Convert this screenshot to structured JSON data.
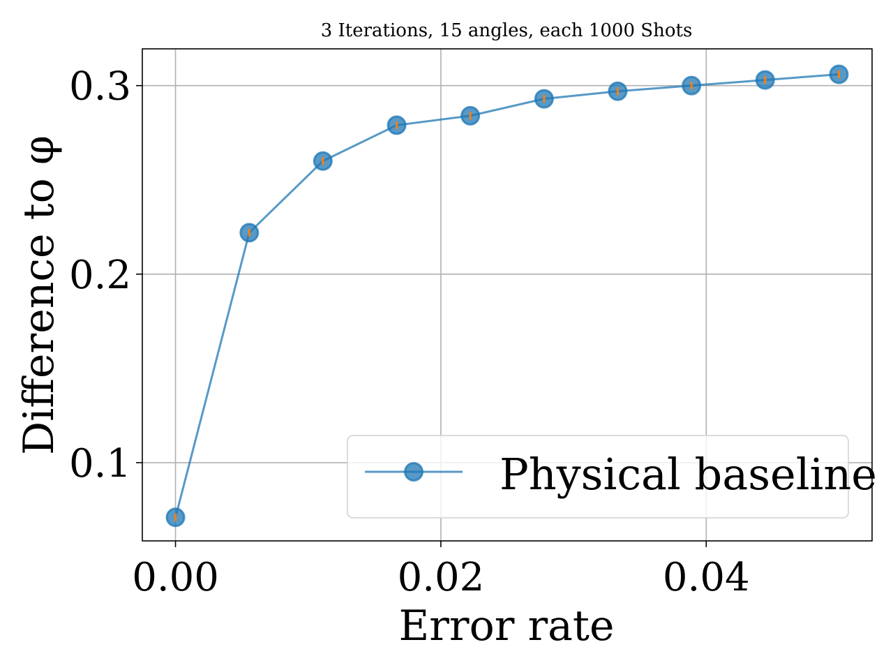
{
  "chart_data": {
    "type": "line",
    "title": "3 Iterations, 15 angles, each 1000 Shots",
    "xlabel": "Error rate",
    "ylabel": "Difference to φ",
    "xlim": [
      -0.0025,
      0.0525
    ],
    "ylim": [
      0.0585,
      0.3195
    ],
    "xticks": [
      0.0,
      0.02,
      0.04
    ],
    "xtick_labels": [
      "0.00",
      "0.02",
      "0.04"
    ],
    "yticks": [
      0.1,
      0.2,
      0.3
    ],
    "ytick_labels": [
      "0.1",
      "0.2",
      "0.3"
    ],
    "grid": true,
    "legend_position": "lower right",
    "series": [
      {
        "name": "Physical baseline",
        "color": "#1f77b4",
        "errorbar_color": "#ff7f0e",
        "x": [
          0.0,
          0.00556,
          0.01111,
          0.01667,
          0.02222,
          0.02778,
          0.03333,
          0.03889,
          0.04444,
          0.05
        ],
        "y": [
          0.071,
          0.222,
          0.26,
          0.279,
          0.284,
          0.293,
          0.297,
          0.3,
          0.303,
          0.306
        ],
        "yerr": [
          0.002,
          0.002,
          0.002,
          0.002,
          0.002,
          0.002,
          0.002,
          0.002,
          0.002,
          0.002
        ]
      }
    ]
  }
}
